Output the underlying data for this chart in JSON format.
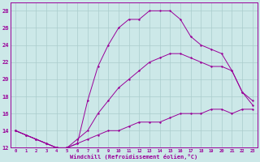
{
  "xlabel": "Windchill (Refroidissement éolien,°C)",
  "bg_color": "#cce8e8",
  "grid_color": "#aacccc",
  "line_color": "#990099",
  "xlim": [
    -0.5,
    23.5
  ],
  "ylim": [
    12,
    29
  ],
  "xticks": [
    0,
    1,
    2,
    3,
    4,
    5,
    6,
    7,
    8,
    9,
    10,
    11,
    12,
    13,
    14,
    15,
    16,
    17,
    18,
    19,
    20,
    21,
    22,
    23
  ],
  "yticks": [
    12,
    14,
    16,
    18,
    20,
    22,
    24,
    26,
    28
  ],
  "line1_x": [
    0,
    1,
    2,
    3,
    4,
    5,
    6,
    7,
    8,
    9,
    10,
    11,
    12,
    13,
    14,
    15,
    16,
    17,
    18,
    19,
    20,
    21,
    22,
    23
  ],
  "line1_y": [
    14,
    13.5,
    13,
    12.5,
    12,
    12,
    12.5,
    13,
    13.5,
    14,
    14,
    14.5,
    15,
    15,
    15,
    15.5,
    16,
    16,
    16,
    16.5,
    16.5,
    16,
    16.5,
    16.5
  ],
  "line2_x": [
    0,
    1,
    2,
    3,
    4,
    5,
    6,
    7,
    8,
    9,
    10,
    11,
    12,
    13,
    14,
    15,
    16,
    17,
    18,
    19,
    20,
    21,
    22,
    23
  ],
  "line2_y": [
    14,
    13.5,
    13,
    12.5,
    12,
    12,
    12.5,
    17.5,
    21.5,
    24,
    26,
    27,
    27,
    28,
    28,
    28,
    27,
    25,
    24,
    23.5,
    23,
    21,
    18.5,
    17.5
  ],
  "line3_x": [
    0,
    1,
    2,
    3,
    4,
    5,
    6,
    7,
    8,
    9,
    10,
    11,
    12,
    13,
    14,
    15,
    16,
    17,
    18,
    19,
    20,
    21,
    22,
    23
  ],
  "line3_y": [
    14,
    13.5,
    13,
    12.5,
    12,
    12,
    13,
    14,
    16,
    17.5,
    19,
    20,
    21,
    22,
    22.5,
    23,
    23,
    22.5,
    22,
    21.5,
    21.5,
    21,
    18.5,
    17
  ]
}
